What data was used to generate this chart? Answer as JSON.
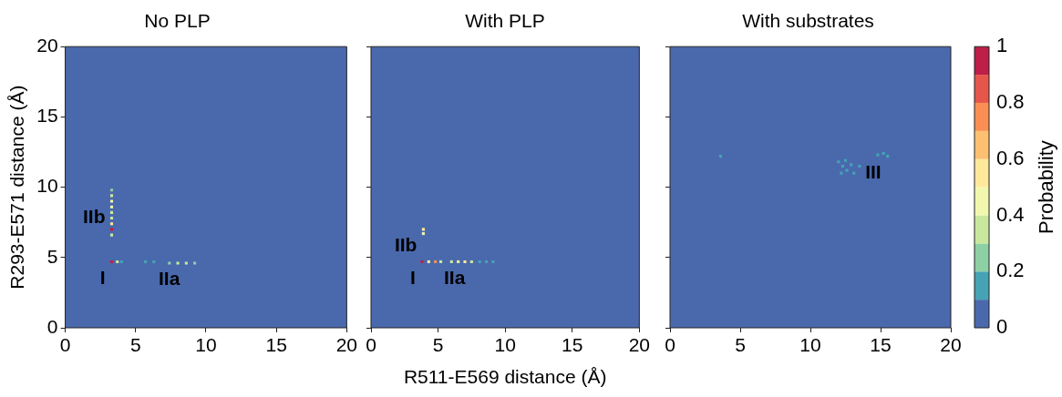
{
  "chart_data": [
    {
      "type": "scatter",
      "title": "No PLP",
      "ylabel": "R293-E571 distance (Å)",
      "marker": "square",
      "xlim": [
        0,
        20
      ],
      "xticks": [
        0,
        5,
        10,
        15,
        20
      ],
      "ylim": [
        0,
        20
      ],
      "yticks": [
        0,
        5,
        10,
        15,
        20
      ],
      "x": [
        3.3,
        3.7,
        4.0,
        5.7,
        6.3,
        7.4,
        8.0,
        8.6,
        9.2,
        3.3,
        3.3,
        3.3,
        3.3,
        3.3,
        3.3,
        3.3,
        3.3,
        3.3
      ],
      "values": [
        4.7,
        4.7,
        4.7,
        4.7,
        4.7,
        4.6,
        4.6,
        4.6,
        4.6,
        6.6,
        7.0,
        7.4,
        7.8,
        8.2,
        8.6,
        9.0,
        9.4,
        9.8
      ],
      "colors": [
        "#bd1f48",
        "#cae89d",
        "#45a3b4",
        "#45a3b4",
        "#45a3b4",
        "#8dd0a4",
        "#cae89d",
        "#cae89d",
        "#8dd0a4",
        "#cae89d",
        "#bd1f48",
        "#fee99b",
        "#cae89d",
        "#cae89d",
        "#f1f8ae",
        "#f1f8ae",
        "#cae89d",
        "#8dd0a4"
      ],
      "annotations": [
        {
          "text": "I",
          "x": 3.3,
          "y": 4.7
        },
        {
          "text": "IIa",
          "x": 8.6,
          "y": 4.6
        },
        {
          "text": "IIb",
          "x": 3.3,
          "y": 9.0
        }
      ]
    },
    {
      "type": "scatter",
      "title": "With PLP",
      "xlabel": "R511-E569 distance (Å)",
      "marker": "square",
      "xlim": [
        0,
        20
      ],
      "xticks": [
        0,
        5,
        10,
        15,
        20
      ],
      "ylim": [
        0,
        20
      ],
      "yticks": [
        0,
        5,
        10,
        15,
        20
      ],
      "tick_labels": "x",
      "x": [
        3.8,
        4.3,
        4.8,
        5.2,
        6.0,
        6.5,
        7.0,
        7.5,
        8.1,
        8.6,
        9.1,
        3.9,
        3.9
      ],
      "values": [
        4.7,
        4.7,
        4.7,
        4.7,
        4.7,
        4.7,
        4.7,
        4.7,
        4.7,
        4.7,
        4.7,
        6.7,
        7.0
      ],
      "colors": [
        "#bd1f48",
        "#fee99b",
        "#f98f53",
        "#cae89d",
        "#cae89d",
        "#fee99b",
        "#fee99b",
        "#cae89d",
        "#45a3b4",
        "#45a3b4",
        "#45a3b4",
        "#f1f8ae",
        "#fee99b"
      ],
      "annotations": [
        {
          "text": "I",
          "x": 3.8,
          "y": 4.7
        },
        {
          "text": "IIa",
          "x": 7.5,
          "y": 4.7
        },
        {
          "text": "IIb",
          "x": 3.9,
          "y": 7.0
        }
      ]
    },
    {
      "type": "scatter",
      "title": "With substrates",
      "clabel": "Probability",
      "clim": [
        0,
        1
      ],
      "cticks": [
        0,
        0.2,
        0.4,
        0.6,
        0.8,
        1
      ],
      "marker": "square",
      "xlim": [
        0,
        20
      ],
      "xticks": [
        0,
        5,
        10,
        15,
        20
      ],
      "ylim": [
        0,
        20
      ],
      "yticks": [
        0,
        5,
        10,
        15,
        20
      ],
      "tick_labels": "x",
      "x": [
        3.6,
        12.0,
        12.3,
        12.6,
        12.9,
        12.5,
        13.1,
        12.2,
        13.5,
        14.8,
        15.2,
        15.5
      ],
      "values": [
        12.2,
        11.8,
        11.5,
        11.2,
        11.6,
        11.9,
        11.0,
        11.0,
        11.5,
        12.3,
        12.4,
        12.2
      ],
      "cvalues": [
        0.15,
        0.15,
        0.15,
        0.15,
        0.15,
        0.15,
        0.15,
        0.15,
        0.15,
        0.15,
        0.15,
        0.15
      ],
      "annotations": [
        {
          "text": "III",
          "x": 15.5,
          "y": 12.2
        }
      ]
    }
  ]
}
